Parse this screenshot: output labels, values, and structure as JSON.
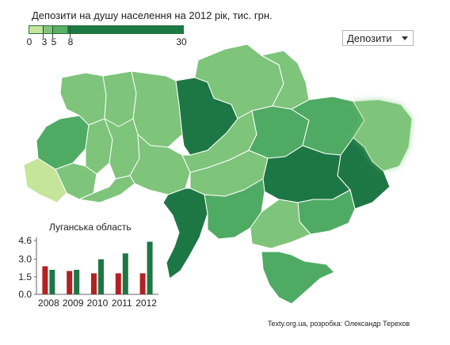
{
  "legend": {
    "title": "Депозити на душу населення на 2012 рік, тис. грн.",
    "ticks": [
      "0",
      "3",
      "5",
      "8",
      "30"
    ],
    "colors": [
      "#c4e59a",
      "#82c47d",
      "#58b065",
      "#1e7a45"
    ]
  },
  "dropdown": {
    "selected": "Депозити"
  },
  "map": {
    "region_names": [],
    "class_colors": {
      "light": "#c4e59a",
      "mid": "#7ec47a",
      "mid_dark": "#4fab63",
      "dark": "#1d7744",
      "highlight": "#2a8a4d"
    }
  },
  "chart_data": {
    "type": "bar",
    "title": "Луганська область",
    "categories": [
      "2008",
      "2009",
      "2010",
      "2011",
      "2012"
    ],
    "series": [
      {
        "color": "#b22222",
        "values": [
          2.4,
          2.0,
          1.8,
          1.8,
          1.8
        ]
      },
      {
        "color": "#1d7744",
        "values": [
          2.1,
          2.1,
          3.0,
          3.5,
          4.5
        ]
      }
    ],
    "yticks": [
      "0.0",
      "1.5",
      "3.0",
      "4.6"
    ],
    "ylim": [
      0,
      4.6
    ]
  },
  "credit": "Texty.org.ua, розробка: Олександр Терехов"
}
